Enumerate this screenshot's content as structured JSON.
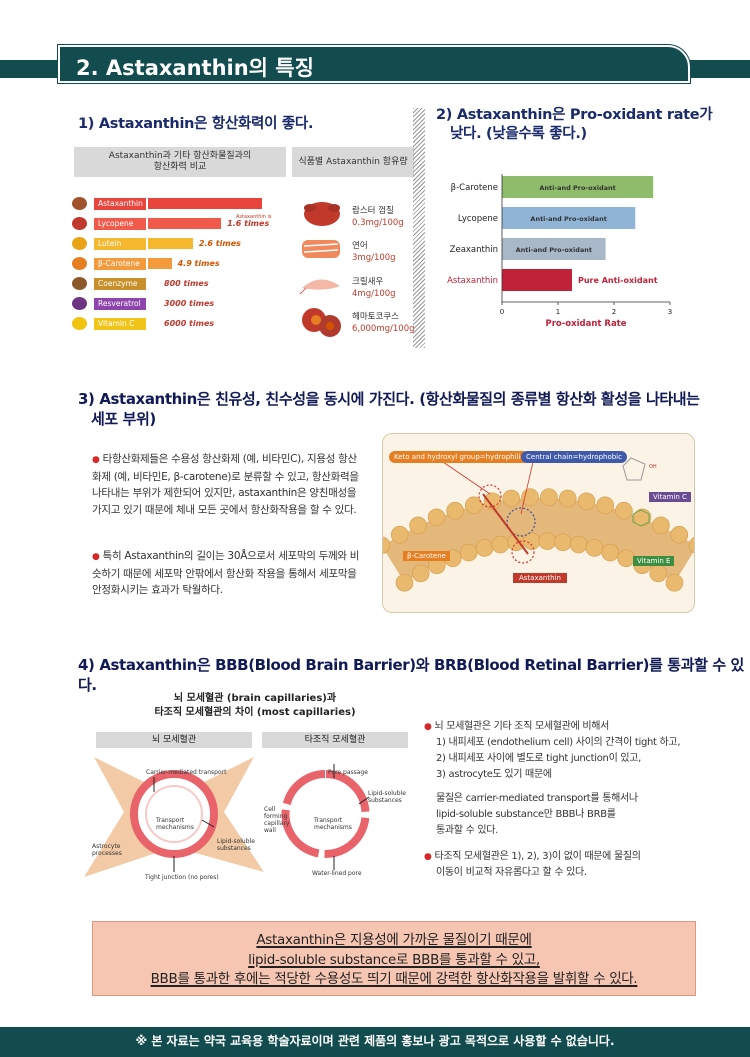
{
  "banner": {
    "title": "2. Astaxanthin의 특징"
  },
  "sec1": {
    "title": "1) Astaxanthin은 항산화력이 좋다.",
    "compare_header_line1": "Astaxanthin과 기타 항산화물질과의",
    "compare_header_line2": "항산화력 비교",
    "food_header": "식품별 Astaxanthin 함유량",
    "bars": [
      {
        "name": "Astaxanthin",
        "value": "",
        "fraction": 0.97,
        "color": "#e8453c",
        "dot": "#a0522d"
      },
      {
        "name": "Lycopene",
        "value": "1.6 times",
        "fraction": 0.62,
        "color": "#ef5a4a",
        "dot": "#c0392b"
      },
      {
        "name": "Lutein",
        "value": "2.6 times",
        "fraction": 0.38,
        "color": "#f5b82e",
        "dot": "#e8a317"
      },
      {
        "name": "β-Carotene",
        "value": "4.9 times",
        "fraction": 0.2,
        "color": "#f39a3d",
        "dot": "#e67e22"
      },
      {
        "name": "Coenzyme Q10",
        "value": "800 times",
        "fraction": 0.0,
        "color": "#c8902a",
        "dot": "#8b5a2b"
      },
      {
        "name": "Resveratrol",
        "value": "3000 times",
        "fraction": 0.0,
        "color": "#8e44ad",
        "dot": "#6c3483"
      },
      {
        "name": "Vitamin C",
        "value": "6000 times",
        "fraction": 0.0,
        "color": "#f0c419",
        "dot": "#f1c40f"
      }
    ],
    "astax_note": "Astaxanthin is",
    "foods": [
      {
        "name": "랍스터 껍질",
        "amount": "0.3mg/100g"
      },
      {
        "name": "연어",
        "amount": "3mg/100g"
      },
      {
        "name": "크릴새우",
        "amount": "4mg/100g"
      },
      {
        "name": "헤마토코쿠스",
        "amount": "6,000mg/100g"
      }
    ]
  },
  "sec2": {
    "title_line1": "2) Astaxanthin은 Pro-oxidant rate가",
    "title_line2": "낮다. (낮을수록 좋다.)",
    "chart_data": {
      "type": "bar",
      "orientation": "horizontal",
      "categories": [
        "β-Carotene",
        "Lycopene",
        "Zeaxanthin",
        "Astaxanthin"
      ],
      "values": [
        2.7,
        2.38,
        1.85,
        1.25
      ],
      "bar_labels": [
        "Anti-and Pro-oxidant",
        "Anti-and Pro-oxidant",
        "Anti-and Pro-oxidant",
        "Pure Anti-oxidant"
      ],
      "colors": [
        "#8fbc6a",
        "#8fb4d6",
        "#a9b8c8",
        "#c0223a"
      ],
      "xlabel": "Pro-oxidant Rate",
      "xticks": [
        "0",
        "1",
        "2",
        "3"
      ],
      "xlim": [
        0,
        3
      ]
    }
  },
  "sec3": {
    "title_line1": "3) Astaxanthin은 친유성, 친수성을 동시에 가진다. (항산화물질의 종류별 항산화 활성을 나타내는",
    "title_line2": "세포 부위)",
    "para1": "타항산화제들은 수용성 항산화제 (예, 비타민C), 지용성 항산화제 (예, 비타민E, β-carotene)로 분류할 수 있고, 항산화력을 나타내는 부위가 제한되어 있지만, astaxanthin은 양친매성을 가지고 있기 때문에 체내 모든 곳에서 항산화작용을 할 수 있다.",
    "para2": "특히 Astaxanthin의 길이는 30Å으로서 세포막의 두께와 비슷하기 때문에 세포막 안팎에서 항산화 작용을 통해서 세포막을 안정화시키는 효과가 탁월하다.",
    "diagram": {
      "label_keto": "Keto and hydroxyl group=hydrophilic",
      "label_central": "Central chain=hydrophobic",
      "label_vitc": "Vitamin C",
      "label_vite": "Vitamin E",
      "label_beta": "β-Carotene",
      "label_astax": "Astaxanthin"
    }
  },
  "sec4": {
    "title": "4) Astaxanthin은 BBB(Blood Brain Barrier)와 BRB(Blood Retinal Barrier)를 통과할 수 있다.",
    "fig_title_line1": "뇌 모세혈관 (brain capillaries)과",
    "fig_title_line2": "타조직 모세혈관의 차이 (most capillaries)",
    "brain_hdr": "뇌 모세혈관",
    "other_hdr": "타조직 모세혈관",
    "brain_labels": {
      "carrier": "Carrier-mediated transport",
      "transport1": "Transport",
      "transport2": "mechanisms",
      "lipid1": "Lipid-soluble",
      "lipid2": "substances",
      "astro1": "Astrocyte",
      "astro2": "processes",
      "tight": "Tight junction (no pores)"
    },
    "other_labels": {
      "pore": "Pore passage",
      "lipid1": "Lipid-soluble",
      "lipid2": "substances",
      "cell1": "Cell",
      "cell2": "forming",
      "cell3": "capillary",
      "cell4": "wall",
      "transport1": "Transport",
      "transport2": "mechanisms",
      "water": "Water-lined pore"
    },
    "right_b1_head": "뇌 모세혈관은 기타 조직 모세혈관에 비해서",
    "right_b1_l1": "1) 내피세포 (endothelium cell) 사이의 간격이 tight 하고,",
    "right_b1_l2": "2) 내피세포 사이에 별도로 tight junction이 있고,",
    "right_b1_l3": "3) astrocyte도 있기 때문에",
    "right_b1_l4": "물질은 carrier-mediated transport를 통해서나",
    "right_b1_l5": "lipid-soluble substance만 BBB나 BRB를",
    "right_b1_l6": "통과할 수 있다.",
    "right_b2_l1": "타조직  모세혈관은 1), 2), 3)이 없이 때문에 물질의",
    "right_b2_l2": "이동이 비교적 자유롭다고 할 수 있다."
  },
  "conclusion": {
    "line1": "Astaxanthin은 지용성에 가까운 물질이기 때문에",
    "line2": "lipid-soluble substance로 BBB를 통과할 수 있고,",
    "line3": "BBB를 통과한 후에는 적당한 수용성도 띄기 때문에 강력한 항산화작용을 발휘할 수 있다."
  },
  "footer": {
    "text": "※ 본 자료는 약국 교육용 학술자료이며 관련 제품의 홍보나 광고 목적으로 사용할 수 없습니다."
  }
}
